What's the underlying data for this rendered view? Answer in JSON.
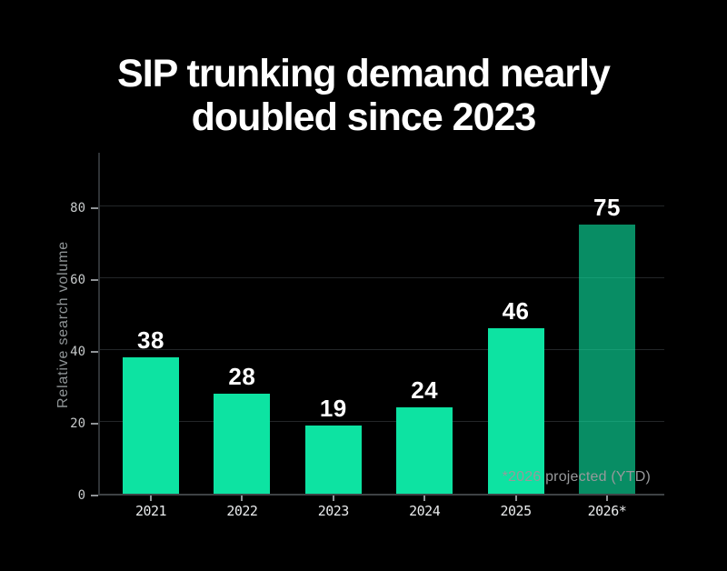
{
  "title": {
    "lines": [
      "SIP trunking demand nearly",
      "doubled since 2023"
    ]
  },
  "chart_data": {
    "type": "bar",
    "title": "SIP trunking demand nearly doubled since 2023",
    "categories": [
      "2021",
      "2022",
      "2023",
      "2024",
      "2025",
      "2026*"
    ],
    "values": [
      38,
      28,
      19,
      24,
      46,
      75
    ],
    "xlabel": "",
    "ylabel": "Relative search volume",
    "yticks": [
      0,
      20,
      40,
      60,
      80
    ],
    "ylim": [
      0,
      95
    ],
    "grid": true,
    "legend": "none",
    "annotation": "*2026 projected (YTD)",
    "projected_index": 5,
    "colors": {
      "background": "#000000",
      "bar": "#0de3a2",
      "projected_bar": "rgba(13,227,162,0.62)",
      "gridline": "#232628",
      "axis": "#3e4245",
      "tick": "#8f9396",
      "tick_label": "#c7cacb",
      "x_label": "#e8eaeb",
      "value_label": "#ffffff",
      "note": "#97999b",
      "title": "#ffffff"
    }
  }
}
